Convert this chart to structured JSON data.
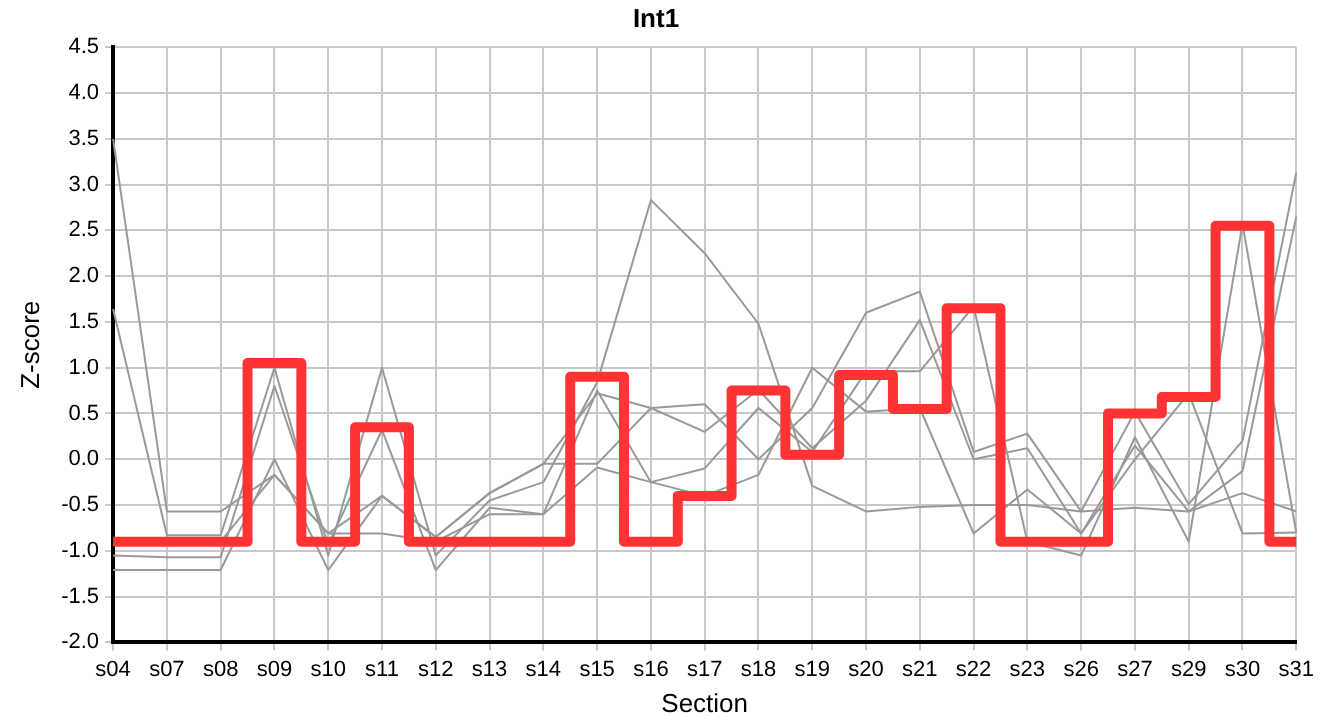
{
  "chart_data": {
    "type": "line",
    "title": "Int1",
    "xlabel": "Section",
    "ylabel": "Z-score",
    "categories": [
      "s04",
      "s07",
      "s08",
      "s09",
      "s10",
      "s11",
      "s12",
      "s13",
      "s14",
      "s15",
      "s16",
      "s17",
      "s18",
      "s19",
      "s20",
      "s21",
      "s22",
      "s23",
      "s26",
      "s27",
      "s29",
      "s30",
      "s31"
    ],
    "series": [
      {
        "type": "line",
        "color": "#999999",
        "values": [
          3.5,
          -0.57,
          -0.57,
          -0.17,
          -0.81,
          -0.4,
          -0.85,
          -0.37,
          -0.05,
          0.72,
          0.56,
          0.6,
          0.0,
          0.56,
          1.6,
          1.83,
          0.08,
          0.28,
          -0.57,
          0.52,
          -0.49,
          0.2,
          3.13
        ]
      },
      {
        "type": "line",
        "color": "#999999",
        "values": [
          1.64,
          -0.83,
          -0.83,
          1.0,
          -1.05,
          1.0,
          -1.05,
          -0.45,
          -0.25,
          0.84,
          2.83,
          2.25,
          1.48,
          -0.29,
          -0.57,
          -0.52,
          -0.5,
          -0.5,
          -0.57,
          -0.53,
          -0.57,
          -0.37,
          -0.57
        ]
      },
      {
        "type": "line",
        "color": "#999999",
        "values": [
          -1.05,
          -1.07,
          -1.07,
          0.8,
          -0.93,
          0.32,
          -1.21,
          -0.53,
          -0.6,
          0.75,
          -0.25,
          -0.1,
          0.56,
          0.08,
          0.96,
          0.96,
          1.67,
          -0.9,
          -1.05,
          0.24,
          -0.9,
          2.57,
          -0.8
        ]
      },
      {
        "type": "line",
        "color": "#999999",
        "values": [
          -1.21,
          -1.21,
          -1.21,
          0.0,
          -1.21,
          -0.4,
          -0.85,
          -0.37,
          -0.05,
          -0.05,
          0.56,
          0.3,
          0.76,
          0.12,
          0.64,
          1.52,
          0.0,
          0.12,
          -0.81,
          0.15,
          -0.57,
          -0.13,
          2.65
        ]
      },
      {
        "type": "line",
        "color": "#999999",
        "values": [
          null,
          -0.9,
          -0.9,
          -0.17,
          -0.81,
          -0.81,
          -0.9,
          -0.6,
          -0.6,
          -0.09,
          -0.25,
          -0.4,
          -0.17,
          1.0,
          0.52,
          0.56,
          -0.81,
          -0.33,
          -0.81,
          0.0,
          0.72,
          -0.81,
          -0.8
        ]
      },
      {
        "type": "step",
        "color": "#ff3333",
        "values": [
          -0.9,
          -0.9,
          -0.9,
          1.05,
          -0.9,
          0.35,
          -0.9,
          -0.9,
          -0.9,
          0.9,
          -0.9,
          -0.4,
          0.75,
          0.05,
          0.92,
          0.55,
          1.65,
          -0.9,
          -0.9,
          0.5,
          0.68,
          2.55,
          -0.9
        ]
      }
    ],
    "ylim": [
      -2,
      4.5
    ],
    "yticks": [
      {
        "value": -2,
        "label": "-2.0"
      },
      {
        "value": -1.5,
        "label": "-1.5"
      },
      {
        "value": -1,
        "label": "-1.0"
      },
      {
        "value": -0.5,
        "label": "-0.5"
      },
      {
        "value": 0,
        "label": "0.0"
      },
      {
        "value": 0.5,
        "label": "0.5"
      },
      {
        "value": 1,
        "label": "1.0"
      },
      {
        "value": 1.5,
        "label": "1.5"
      },
      {
        "value": 2,
        "label": "2.0"
      },
      {
        "value": 2.5,
        "label": "2.5"
      },
      {
        "value": 3,
        "label": "3.0"
      },
      {
        "value": 3.5,
        "label": "3.5"
      },
      {
        "value": 4,
        "label": "4.0"
      },
      {
        "value": 4.5,
        "label": "4.5"
      }
    ],
    "grid": true,
    "legend": false,
    "marker": "none"
  }
}
